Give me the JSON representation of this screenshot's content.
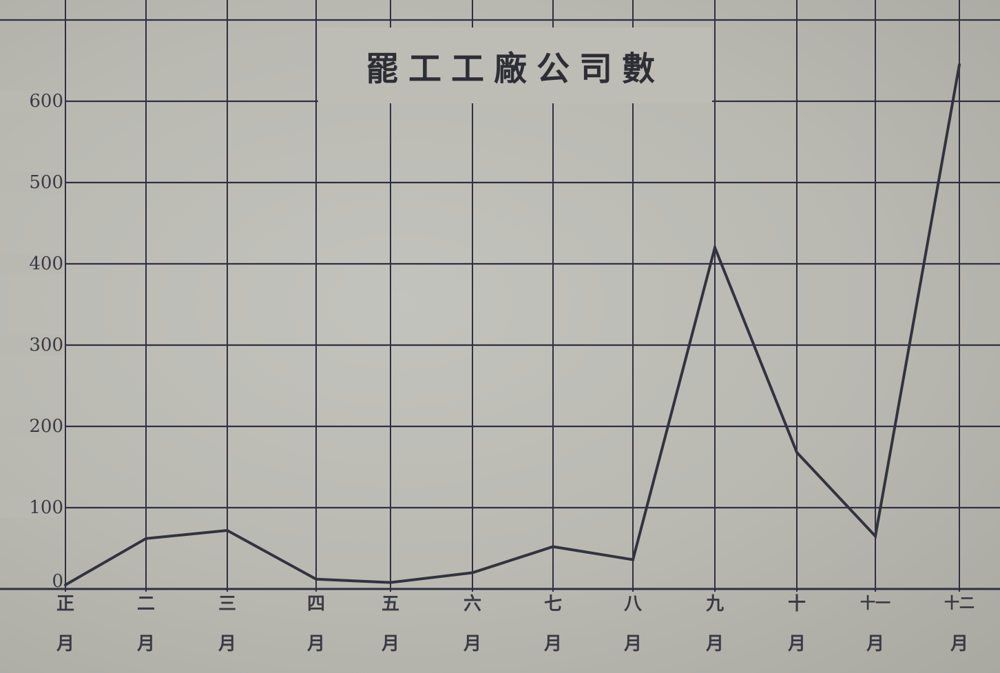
{
  "chart_data": {
    "type": "line",
    "title": "罷工工廠公司數",
    "categories": [
      {
        "num": "正",
        "suffix": "月"
      },
      {
        "num": "二",
        "suffix": "月"
      },
      {
        "num": "三",
        "suffix": "月"
      },
      {
        "num": "四",
        "suffix": "月"
      },
      {
        "num": "五",
        "suffix": "月"
      },
      {
        "num": "六",
        "suffix": "月"
      },
      {
        "num": "七",
        "suffix": "月"
      },
      {
        "num": "八",
        "suffix": "月"
      },
      {
        "num": "九",
        "suffix": "月"
      },
      {
        "num": "十",
        "suffix": "月"
      },
      {
        "num": "十一",
        "suffix": "月"
      },
      {
        "num": "十二",
        "suffix": "月"
      }
    ],
    "values": [
      5,
      62,
      72,
      12,
      8,
      20,
      52,
      36,
      420,
      168,
      65,
      645
    ],
    "ylim": [
      0,
      700
    ],
    "yticks": [
      "0",
      "100",
      "200",
      "300",
      "400",
      "500",
      "600"
    ],
    "grid": true,
    "colors": {
      "line": "#33333f",
      "grid": "#2f2f40",
      "paper": "#b9b9b2"
    }
  }
}
